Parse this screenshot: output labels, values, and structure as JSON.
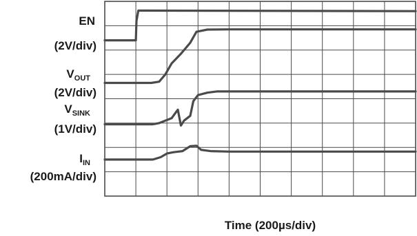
{
  "chart_data": {
    "type": "line",
    "title": "",
    "xlabel": "Time (200µs/div)",
    "grid": true,
    "grid_divisions": {
      "x": 10,
      "y": 8
    },
    "x_range_div": [
      0,
      10
    ],
    "y_range_div": [
      0,
      8
    ],
    "trace_color": "#4a4a4a",
    "grid_color": "#4a4a4a",
    "channels": [
      {
        "id": "en",
        "label_main": "EN",
        "label_sub": "",
        "scale": "(2V/div)",
        "points": [
          [
            0,
            6.4
          ],
          [
            1.0,
            6.4
          ],
          [
            1.02,
            7.2
          ],
          [
            1.08,
            7.62
          ],
          [
            1.2,
            7.62
          ],
          [
            10,
            7.6
          ]
        ]
      },
      {
        "id": "vout",
        "label_main": "V",
        "label_sub": "OUT",
        "scale": "(2V/div)",
        "points": [
          [
            0,
            4.65
          ],
          [
            1.5,
            4.65
          ],
          [
            1.75,
            4.7
          ],
          [
            1.95,
            5.0
          ],
          [
            2.15,
            5.45
          ],
          [
            2.45,
            5.85
          ],
          [
            2.75,
            6.3
          ],
          [
            2.95,
            6.75
          ],
          [
            3.3,
            6.84
          ],
          [
            4.0,
            6.85
          ],
          [
            10,
            6.85
          ]
        ]
      },
      {
        "id": "vsink",
        "label_main": "V",
        "label_sub": "SINK",
        "scale": "(1V/div)",
        "points": [
          [
            0,
            2.95
          ],
          [
            1.55,
            2.95
          ],
          [
            1.75,
            3.0
          ],
          [
            1.95,
            3.1
          ],
          [
            2.15,
            3.2
          ],
          [
            2.35,
            3.55
          ],
          [
            2.45,
            2.9
          ],
          [
            2.55,
            3.1
          ],
          [
            2.75,
            3.3
          ],
          [
            2.85,
            3.9
          ],
          [
            3.0,
            4.15
          ],
          [
            3.3,
            4.25
          ],
          [
            3.6,
            4.3
          ],
          [
            10,
            4.3
          ]
        ]
      },
      {
        "id": "iin",
        "label_main": "I",
        "label_sub": "IN",
        "scale": "(200mA/div)",
        "points": [
          [
            0,
            1.5
          ],
          [
            1.55,
            1.5
          ],
          [
            1.8,
            1.6
          ],
          [
            2.0,
            1.75
          ],
          [
            2.2,
            1.8
          ],
          [
            2.5,
            1.85
          ],
          [
            2.75,
            2.05
          ],
          [
            2.95,
            2.07
          ],
          [
            3.1,
            1.9
          ],
          [
            3.4,
            1.85
          ],
          [
            4.0,
            1.83
          ],
          [
            10,
            1.83
          ]
        ]
      }
    ]
  }
}
